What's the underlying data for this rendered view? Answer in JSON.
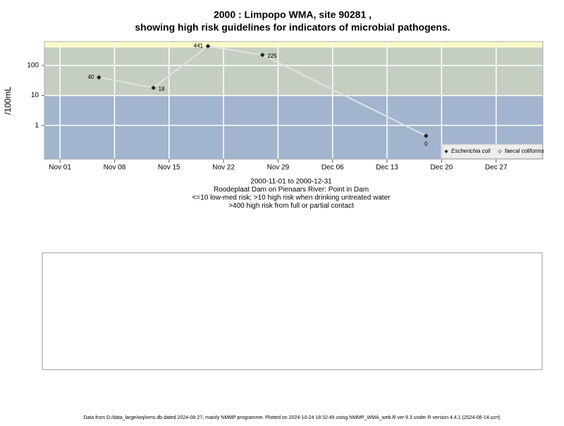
{
  "chart_data": {
    "type": "line",
    "title": "2000 : Limpopo WMA, site 90281 ,",
    "subtitle": "showing high risk guidelines for indicators of microbial pathogens.",
    "y_label": "/100mL",
    "log_y": true,
    "grid": true,
    "ylim": [
      0.075,
      630
    ],
    "yticks": [
      1,
      10,
      100
    ],
    "xlim": [
      "2000-10-30",
      "2001-01-02"
    ],
    "xticks": [
      {
        "value": "2000-11-01",
        "label": "Nov 01"
      },
      {
        "value": "2000-11-08",
        "label": "Nov 08"
      },
      {
        "value": "2000-11-15",
        "label": "Nov 15"
      },
      {
        "value": "2000-11-22",
        "label": "Nov 22"
      },
      {
        "value": "2000-11-29",
        "label": "Nov 29"
      },
      {
        "value": "2000-12-06",
        "label": "Dec 06"
      },
      {
        "value": "2000-12-13",
        "label": "Dec 13"
      },
      {
        "value": "2000-12-20",
        "label": "Dec 20"
      },
      {
        "value": "2000-12-27",
        "label": "Dec 27"
      }
    ],
    "bands": [
      {
        "to": 10,
        "color": "#a3b4cf"
      },
      {
        "from": 10,
        "to": 400,
        "color": "#c4cfc2"
      },
      {
        "from": 400,
        "color": "#fafac8"
      }
    ],
    "x": [
      "2000-11-06",
      "2000-11-13",
      "2000-11-20",
      "2000-11-27",
      "2000-12-18"
    ],
    "series": [
      {
        "name": "Escherichia coli",
        "color": "#222222",
        "line_color": "#e2e2e2",
        "values": [
          40,
          18,
          441,
          225,
          0.45
        ],
        "value_labels": [
          "40",
          "18",
          "441",
          "225",
          "0"
        ]
      },
      {
        "name": "faecal coliforms",
        "color": "#ffffff",
        "line_color": "#e2e2e2",
        "values": [
          null,
          null,
          null,
          null,
          null
        ]
      }
    ],
    "legend_position": "bottom-right",
    "caption": [
      "2000-11-01 to 2000-12-31",
      "Roodeplaat Dam on Pienaars River: Point in Dam",
      "<=10 low-med risk; >10 high risk when drinking untreated water",
      ">400 high risk from full or partial contact"
    ],
    "footer": "Data from D:/data_large/wq/wms.db dated 2024-08-27, mainly NMMP programme. Plotted on 2024-10-24 18:32:49 using NMMP_WMA_web.R ver 9.3 under R version 4.4.1 (2024-06-14 ucrt)"
  }
}
